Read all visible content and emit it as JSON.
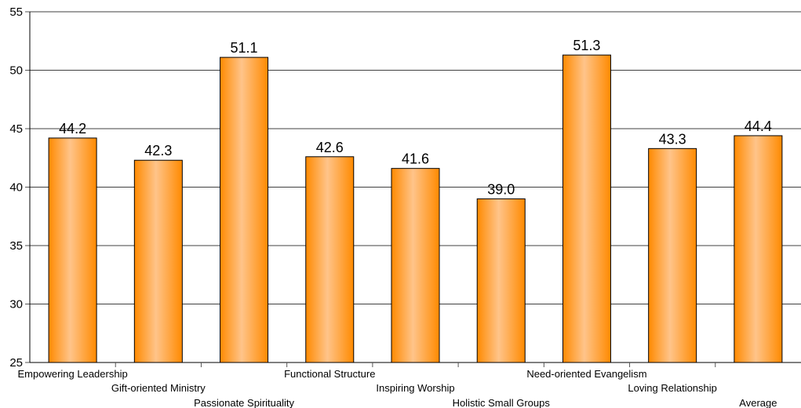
{
  "chart_data": {
    "type": "bar",
    "title": "",
    "xlabel": "",
    "ylabel": "",
    "categories": [
      "Empowering Leadership",
      "Gift-oriented Ministry",
      "Passionate Spirituality",
      "Functional Structure",
      "Inspiring Worship",
      "Holistic Small Groups",
      "Need-oriented Evangelism",
      "Loving Relationship",
      "Average"
    ],
    "values": [
      44.2,
      42.3,
      51.1,
      42.6,
      41.6,
      39.0,
      51.3,
      43.3,
      44.4
    ],
    "data_labels": [
      "44.2",
      "42.3",
      "51.1",
      "42.6",
      "41.6",
      "39.0",
      "51.3",
      "43.3",
      "44.4"
    ],
    "ylim": [
      25,
      55
    ],
    "yticks": [
      25,
      30,
      35,
      40,
      45,
      50,
      55
    ],
    "grid": "horizontal",
    "legend": "none",
    "bar_color": "#ff8c1a"
  }
}
